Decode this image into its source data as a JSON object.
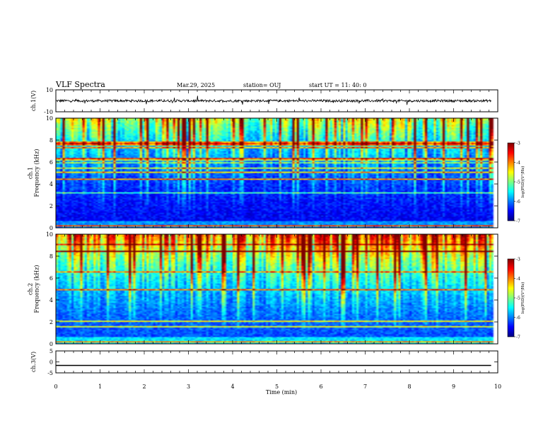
{
  "header": {
    "title": "VLF Spectra",
    "date": "Mar.29, 2025",
    "station": "station= OUJ",
    "start": "start  UT =   11: 40: 0"
  },
  "chart_data": [
    {
      "type": "line",
      "name": "ch1-waveform",
      "ylabel": "ch.1(V)",
      "ylim": [
        -10,
        10
      ],
      "yticks": [
        "10",
        "-10"
      ],
      "xlim": [
        0,
        10
      ],
      "baseline": 0,
      "extent_x": [
        0,
        9.85
      ],
      "note_color": "#000000"
    },
    {
      "type": "heatmap",
      "name": "ch1-spectrogram",
      "ylabel": "ch.1\nFrequency (kHz)",
      "ylim": [
        0,
        10
      ],
      "yticks": [
        "0",
        "2",
        "4",
        "6",
        "8",
        "10"
      ],
      "xlim": [
        0,
        10
      ],
      "extent_x": [
        0,
        9.85
      ],
      "colorbar": {
        "label": "log(PSD)(V²/Hz)",
        "range": [
          -7,
          -3
        ],
        "ticks": [
          "-3",
          "-4",
          "-5",
          "-6",
          "-7"
        ]
      }
    },
    {
      "type": "heatmap",
      "name": "ch2-spectrogram",
      "ylabel": "ch.2\nFrequency (kHz)",
      "ylim": [
        0,
        10
      ],
      "yticks": [
        "0",
        "2",
        "4",
        "6",
        "8",
        "10"
      ],
      "xlim": [
        0,
        10
      ],
      "extent_x": [
        0,
        9.85
      ],
      "colorbar": {
        "label": "log(PSD)(V²/Hz)",
        "range": [
          -7,
          -3
        ],
        "ticks": [
          "-3",
          "-4",
          "-5",
          "-6",
          "-7"
        ]
      }
    },
    {
      "type": "line",
      "name": "ch3-waveform",
      "ylabel": "ch.3(V)",
      "ylim": [
        -5,
        5
      ],
      "yticks": [
        "5",
        "0",
        "-5"
      ],
      "xlim": [
        0,
        10
      ],
      "baseline": -1.6,
      "extent_x": [
        0,
        9.85
      ],
      "xlabel": "Time (min)",
      "xticks": [
        "0",
        "1",
        "2",
        "3",
        "4",
        "5",
        "6",
        "7",
        "8",
        "9",
        "10"
      ]
    }
  ],
  "colors": {
    "colormap": [
      "#00007f",
      "#0000ff",
      "#007fff",
      "#00ffff",
      "#7fff7f",
      "#ffff00",
      "#ff7f00",
      "#ff0000",
      "#7f0000"
    ]
  }
}
